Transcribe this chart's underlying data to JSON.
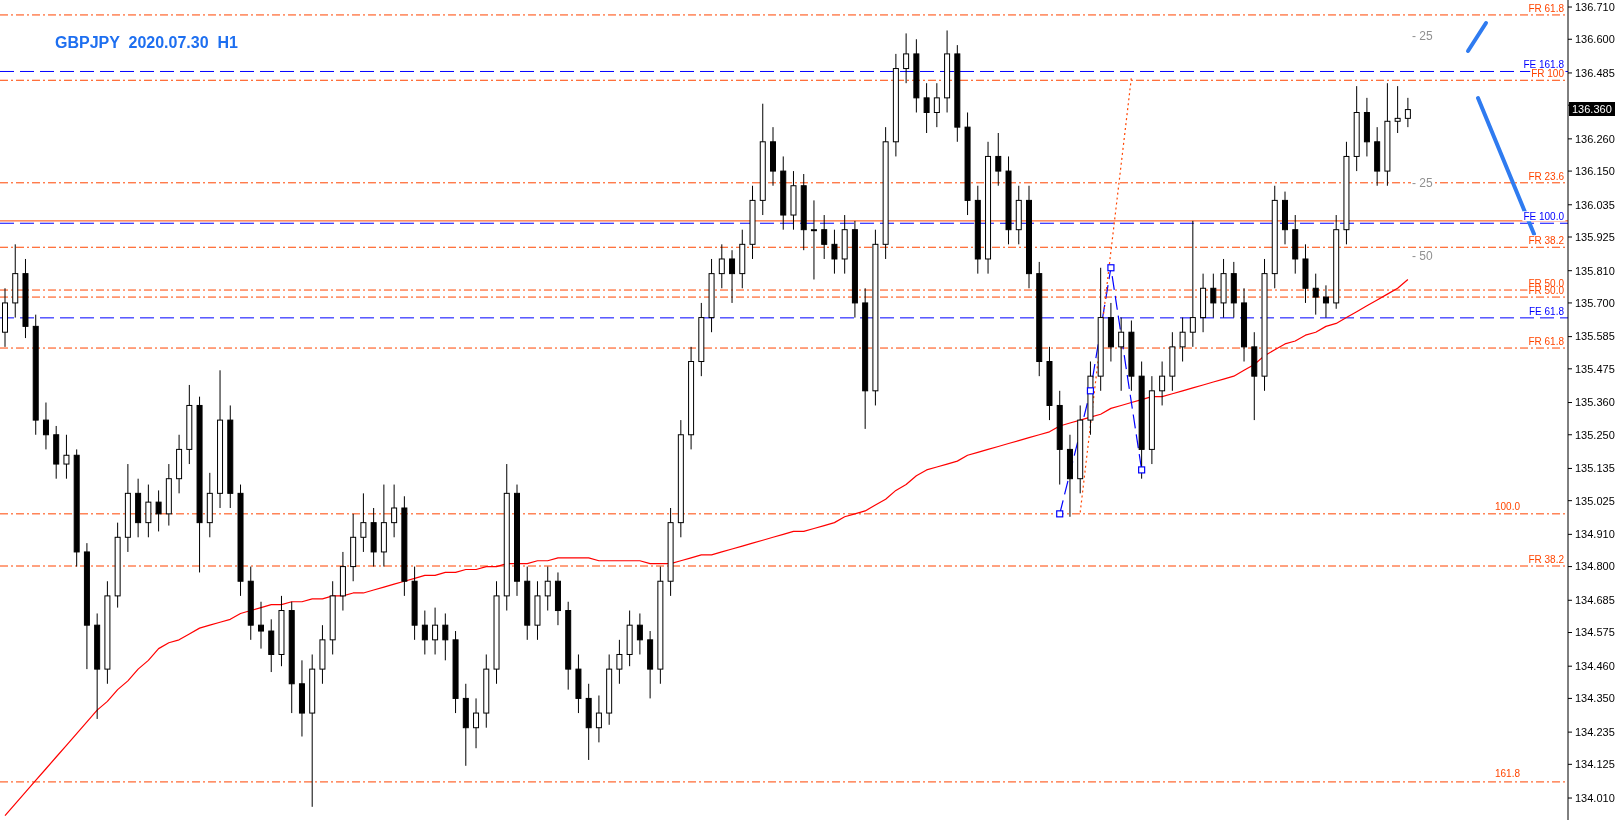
{
  "chart_data": {
    "type": "candlestick",
    "title": "GBPJPY  2020.07.30  H1",
    "categories": [
      null,
      null,
      null,
      null,
      null,
      null,
      null,
      null,
      null,
      null,
      null,
      null,
      null,
      null,
      null,
      null,
      null,
      null,
      null,
      null,
      null,
      null,
      null,
      null,
      null,
      null,
      null,
      null,
      null,
      null,
      null,
      null,
      null,
      null,
      null,
      null,
      null,
      null,
      null,
      null,
      null,
      null,
      null,
      null,
      null,
      null,
      null,
      null,
      null,
      null,
      null,
      null,
      null,
      null,
      null,
      null,
      null,
      null,
      null,
      null,
      null,
      null,
      null,
      null,
      null,
      null,
      null,
      null,
      null,
      null,
      null,
      null,
      null,
      null,
      null,
      null,
      null,
      null,
      null,
      null,
      null,
      null,
      null,
      null,
      null,
      null,
      null,
      null,
      null,
      null,
      null,
      null,
      null,
      null,
      null,
      null,
      null,
      null,
      null,
      null,
      null,
      null,
      null,
      null,
      null,
      null,
      null,
      null,
      null,
      null,
      null,
      null,
      null,
      null,
      null,
      null,
      null,
      null,
      null,
      null,
      null,
      null,
      null,
      null,
      null,
      null,
      null,
      null,
      null,
      null,
      null,
      null,
      null,
      null,
      null,
      null,
      null,
      null,
      null,
      null,
      null,
      null,
      null,
      null,
      null,
      null,
      null,
      null,
      null,
      null,
      null,
      null,
      null
    ],
    "ohlc": [
      [
        135.6,
        135.75,
        135.55,
        135.7
      ],
      [
        135.7,
        135.9,
        135.65,
        135.8
      ],
      [
        135.8,
        135.85,
        135.58,
        135.62
      ],
      [
        135.62,
        135.66,
        135.25,
        135.3
      ],
      [
        135.3,
        135.36,
        135.2,
        135.25
      ],
      [
        135.25,
        135.28,
        135.1,
        135.15
      ],
      [
        135.15,
        135.25,
        135.1,
        135.18
      ],
      [
        135.18,
        135.2,
        134.8,
        134.85
      ],
      [
        134.85,
        134.88,
        134.45,
        134.6
      ],
      [
        134.6,
        134.64,
        134.28,
        134.45
      ],
      [
        134.45,
        134.75,
        134.4,
        134.7
      ],
      [
        134.7,
        134.95,
        134.66,
        134.9
      ],
      [
        134.9,
        135.15,
        134.85,
        135.05
      ],
      [
        135.05,
        135.1,
        134.9,
        134.95
      ],
      [
        134.95,
        135.08,
        134.9,
        135.02
      ],
      [
        135.02,
        135.06,
        134.92,
        134.98
      ],
      [
        134.98,
        135.15,
        134.94,
        135.1
      ],
      [
        135.1,
        135.25,
        135.05,
        135.2
      ],
      [
        135.2,
        135.42,
        135.15,
        135.35
      ],
      [
        135.35,
        135.38,
        134.78,
        134.95
      ],
      [
        134.95,
        135.12,
        134.9,
        135.05
      ],
      [
        135.05,
        135.47,
        135.0,
        135.3
      ],
      [
        135.3,
        135.35,
        135.0,
        135.05
      ],
      [
        135.05,
        135.08,
        134.7,
        134.75
      ],
      [
        134.75,
        134.8,
        134.55,
        134.6
      ],
      [
        134.6,
        134.68,
        134.52,
        134.58
      ],
      [
        134.58,
        134.62,
        134.44,
        134.5
      ],
      [
        134.5,
        134.7,
        134.46,
        134.65
      ],
      [
        134.65,
        134.68,
        134.3,
        134.4
      ],
      [
        134.4,
        134.48,
        134.22,
        134.3
      ],
      [
        134.3,
        134.5,
        133.98,
        134.45
      ],
      [
        134.45,
        134.6,
        134.4,
        134.55
      ],
      [
        134.55,
        134.75,
        134.5,
        134.7
      ],
      [
        134.7,
        134.85,
        134.65,
        134.8
      ],
      [
        134.8,
        134.98,
        134.75,
        134.9
      ],
      [
        134.9,
        135.05,
        134.85,
        134.95
      ],
      [
        134.95,
        135.0,
        134.8,
        134.85
      ],
      [
        134.85,
        135.08,
        134.8,
        134.95
      ],
      [
        134.95,
        135.08,
        134.9,
        135.0
      ],
      [
        135.0,
        135.04,
        134.7,
        134.75
      ],
      [
        134.75,
        134.8,
        134.55,
        134.6
      ],
      [
        134.6,
        134.65,
        134.5,
        134.55
      ],
      [
        134.55,
        134.66,
        134.5,
        134.6
      ],
      [
        134.6,
        134.64,
        134.48,
        134.55
      ],
      [
        134.55,
        134.58,
        134.3,
        134.35
      ],
      [
        134.35,
        134.4,
        134.12,
        134.25
      ],
      [
        134.25,
        134.35,
        134.18,
        134.3
      ],
      [
        134.3,
        134.5,
        134.25,
        134.45
      ],
      [
        134.45,
        134.75,
        134.4,
        134.7
      ],
      [
        134.7,
        135.15,
        134.65,
        135.05
      ],
      [
        135.05,
        135.08,
        134.7,
        134.75
      ],
      [
        134.75,
        134.8,
        134.55,
        134.6
      ],
      [
        134.6,
        134.75,
        134.55,
        134.7
      ],
      [
        134.7,
        134.8,
        134.65,
        134.75
      ],
      [
        134.75,
        134.78,
        134.6,
        134.65
      ],
      [
        134.65,
        134.68,
        134.38,
        134.45
      ],
      [
        134.45,
        134.5,
        134.3,
        134.35
      ],
      [
        134.35,
        134.4,
        134.14,
        134.25
      ],
      [
        134.25,
        134.36,
        134.2,
        134.3
      ],
      [
        134.3,
        134.5,
        134.26,
        134.45
      ],
      [
        134.45,
        134.55,
        134.4,
        134.5
      ],
      [
        134.5,
        134.65,
        134.46,
        134.6
      ],
      [
        134.6,
        134.64,
        134.5,
        134.55
      ],
      [
        134.55,
        134.58,
        134.35,
        134.45
      ],
      [
        134.45,
        134.8,
        134.4,
        134.75
      ],
      [
        134.75,
        135.0,
        134.7,
        134.95
      ],
      [
        134.95,
        135.3,
        134.9,
        135.25
      ],
      [
        135.25,
        135.55,
        135.2,
        135.5
      ],
      [
        135.5,
        135.7,
        135.45,
        135.65
      ],
      [
        135.65,
        135.85,
        135.6,
        135.8
      ],
      [
        135.8,
        135.9,
        135.75,
        135.85
      ],
      [
        135.85,
        135.88,
        135.7,
        135.8
      ],
      [
        135.8,
        135.95,
        135.75,
        135.9
      ],
      [
        135.9,
        136.1,
        135.85,
        136.05
      ],
      [
        136.05,
        136.38,
        136.0,
        136.25
      ],
      [
        136.25,
        136.3,
        136.1,
        136.15
      ],
      [
        136.15,
        136.2,
        135.95,
        136.0
      ],
      [
        136.0,
        136.15,
        135.95,
        136.1
      ],
      [
        136.1,
        136.14,
        135.88,
        135.95
      ],
      [
        135.95,
        136.05,
        135.78,
        135.95
      ],
      [
        135.95,
        136.0,
        135.85,
        135.9
      ],
      [
        135.9,
        135.95,
        135.8,
        135.85
      ],
      [
        135.85,
        136.0,
        135.8,
        135.95
      ],
      [
        135.95,
        135.98,
        135.65,
        135.7
      ],
      [
        135.7,
        135.75,
        135.27,
        135.4
      ],
      [
        135.4,
        135.95,
        135.35,
        135.9
      ],
      [
        135.9,
        136.3,
        135.85,
        136.25
      ],
      [
        136.25,
        136.55,
        136.2,
        136.5
      ],
      [
        136.5,
        136.62,
        136.45,
        136.55
      ],
      [
        136.55,
        136.6,
        136.35,
        136.4
      ],
      [
        136.4,
        136.45,
        136.28,
        136.35
      ],
      [
        136.35,
        136.45,
        136.3,
        136.4
      ],
      [
        136.4,
        136.63,
        136.35,
        136.55
      ],
      [
        136.55,
        136.58,
        136.25,
        136.3
      ],
      [
        136.3,
        136.35,
        136.0,
        136.05
      ],
      [
        136.05,
        136.1,
        135.8,
        135.85
      ],
      [
        135.85,
        136.25,
        135.8,
        136.2
      ],
      [
        136.2,
        136.28,
        136.1,
        136.15
      ],
      [
        136.15,
        136.2,
        135.9,
        135.95
      ],
      [
        135.95,
        136.1,
        135.9,
        136.05
      ],
      [
        136.05,
        136.1,
        135.75,
        135.8
      ],
      [
        135.8,
        135.84,
        135.45,
        135.5
      ],
      [
        135.5,
        135.55,
        135.3,
        135.35
      ],
      [
        135.35,
        135.4,
        135.08,
        135.2
      ],
      [
        135.2,
        135.25,
        134.97,
        135.1
      ],
      [
        135.1,
        135.35,
        135.05,
        135.3
      ],
      [
        135.3,
        135.5,
        135.25,
        135.45
      ],
      [
        135.45,
        135.82,
        135.4,
        135.65
      ],
      [
        135.65,
        135.7,
        135.5,
        135.55
      ],
      [
        135.55,
        135.65,
        135.4,
        135.6
      ],
      [
        135.6,
        135.64,
        135.4,
        135.45
      ],
      [
        135.45,
        135.5,
        135.1,
        135.2
      ],
      [
        135.2,
        135.45,
        135.15,
        135.4
      ],
      [
        135.4,
        135.5,
        135.35,
        135.45
      ],
      [
        135.45,
        135.6,
        135.4,
        135.55
      ],
      [
        135.55,
        135.65,
        135.5,
        135.6
      ],
      [
        135.6,
        135.98,
        135.55,
        135.65
      ],
      [
        135.65,
        135.8,
        135.6,
        135.75
      ],
      [
        135.75,
        135.8,
        135.65,
        135.7
      ],
      [
        135.7,
        135.85,
        135.65,
        135.8
      ],
      [
        135.8,
        135.84,
        135.65,
        135.7
      ],
      [
        135.7,
        135.75,
        135.5,
        135.55
      ],
      [
        135.55,
        135.6,
        135.3,
        135.45
      ],
      [
        135.45,
        135.85,
        135.4,
        135.8
      ],
      [
        135.8,
        136.1,
        135.75,
        136.05
      ],
      [
        136.05,
        136.08,
        135.9,
        135.95
      ],
      [
        135.95,
        136.0,
        135.8,
        135.85
      ],
      [
        135.85,
        135.9,
        135.7,
        135.75
      ],
      [
        135.75,
        135.8,
        135.66,
        135.72
      ],
      [
        135.72,
        135.76,
        135.65,
        135.7
      ],
      [
        135.7,
        136.0,
        135.68,
        135.95
      ],
      [
        135.95,
        136.25,
        135.9,
        136.2
      ],
      [
        136.2,
        136.44,
        136.15,
        136.35
      ],
      [
        136.35,
        136.4,
        136.2,
        136.25
      ],
      [
        136.25,
        136.3,
        136.1,
        136.15
      ],
      [
        136.15,
        136.45,
        136.1,
        136.32
      ],
      [
        136.32,
        136.44,
        136.28,
        136.33
      ],
      [
        136.33,
        136.4,
        136.3,
        136.36
      ],
      null,
      null,
      null,
      null,
      null,
      null,
      null,
      null,
      null,
      null,
      null,
      null,
      null,
      null,
      null
    ],
    "series": [
      {
        "type": "line",
        "color": "#ff0000",
        "values": [
          133.95,
          133.99,
          134.03,
          134.07,
          134.11,
          134.15,
          134.19,
          134.23,
          134.27,
          134.31,
          134.34,
          134.38,
          134.41,
          134.45,
          134.48,
          134.52,
          134.54,
          134.55,
          134.57,
          134.59,
          134.6,
          134.61,
          134.62,
          134.64,
          134.65,
          134.66,
          134.67,
          134.67,
          134.68,
          134.68,
          134.69,
          134.69,
          134.7,
          134.7,
          134.71,
          134.71,
          134.72,
          134.73,
          134.74,
          134.75,
          134.76,
          134.77,
          134.77,
          134.78,
          134.78,
          134.79,
          134.79,
          134.8,
          134.8,
          134.81,
          134.81,
          134.81,
          134.82,
          134.82,
          134.83,
          134.83,
          134.83,
          134.83,
          134.82,
          134.82,
          134.82,
          134.82,
          134.82,
          134.81,
          134.81,
          134.81,
          134.82,
          134.83,
          134.84,
          134.84,
          134.85,
          134.86,
          134.87,
          134.88,
          134.89,
          134.9,
          134.91,
          134.92,
          134.92,
          134.93,
          134.94,
          134.95,
          134.97,
          134.98,
          134.99,
          135.01,
          135.03,
          135.06,
          135.08,
          135.11,
          135.13,
          135.14,
          135.15,
          135.16,
          135.18,
          135.19,
          135.2,
          135.21,
          135.22,
          135.23,
          135.24,
          135.25,
          135.26,
          135.28,
          135.29,
          135.3,
          135.31,
          135.32,
          135.34,
          135.35,
          135.36,
          135.37,
          135.38,
          135.38,
          135.39,
          135.4,
          135.41,
          135.42,
          135.43,
          135.44,
          135.45,
          135.47,
          135.49,
          135.52,
          135.54,
          135.56,
          135.57,
          135.59,
          135.6,
          135.62,
          135.63,
          135.65,
          135.67,
          135.69,
          135.71,
          135.73,
          135.75,
          135.78,
          null,
          null,
          null,
          null,
          null,
          null,
          null,
          null,
          null,
          null,
          null,
          null,
          null,
          null,
          null
        ]
      },
      {
        "type": "line",
        "color": "#0000ff",
        "line_style": "dashed",
        "marker": "square",
        "values": [
          null,
          null,
          null,
          null,
          null,
          null,
          null,
          null,
          null,
          null,
          null,
          null,
          null,
          null,
          null,
          null,
          null,
          null,
          null,
          null,
          null,
          null,
          null,
          null,
          null,
          null,
          null,
          null,
          null,
          null,
          null,
          null,
          null,
          null,
          null,
          null,
          null,
          null,
          null,
          null,
          null,
          null,
          null,
          null,
          null,
          null,
          null,
          null,
          null,
          null,
          null,
          null,
          null,
          null,
          null,
          null,
          null,
          null,
          null,
          null,
          null,
          null,
          null,
          null,
          null,
          null,
          null,
          null,
          null,
          null,
          null,
          null,
          null,
          null,
          null,
          null,
          null,
          null,
          null,
          null,
          null,
          null,
          null,
          null,
          null,
          null,
          null,
          null,
          null,
          null,
          null,
          null,
          null,
          null,
          null,
          null,
          null,
          null,
          null,
          null,
          null,
          null,
          null,
          134.98,
          null,
          null,
          135.4,
          null,
          135.82,
          null,
          null,
          135.13,
          null,
          null,
          null,
          null,
          null,
          null,
          null,
          null,
          null,
          null,
          null,
          null,
          null,
          null,
          null,
          null,
          null,
          null,
          null,
          null,
          null,
          null,
          null,
          null,
          null,
          null,
          null,
          null,
          null,
          null,
          null,
          null,
          null,
          null,
          null,
          null,
          null,
          null,
          null,
          null,
          null
        ]
      },
      {
        "type": "line",
        "color": "#ff4500",
        "line_style": "dotted",
        "values": [
          null,
          null,
          null,
          null,
          null,
          null,
          null,
          null,
          null,
          null,
          null,
          null,
          null,
          null,
          null,
          null,
          null,
          null,
          null,
          null,
          null,
          null,
          null,
          null,
          null,
          null,
          null,
          null,
          null,
          null,
          null,
          null,
          null,
          null,
          null,
          null,
          null,
          null,
          null,
          null,
          null,
          null,
          null,
          null,
          null,
          null,
          null,
          null,
          null,
          null,
          null,
          null,
          null,
          null,
          null,
          null,
          null,
          null,
          null,
          null,
          null,
          null,
          null,
          null,
          null,
          null,
          null,
          null,
          null,
          null,
          null,
          null,
          null,
          null,
          null,
          null,
          null,
          null,
          null,
          null,
          null,
          null,
          null,
          null,
          null,
          null,
          null,
          null,
          null,
          null,
          null,
          null,
          null,
          null,
          null,
          null,
          null,
          null,
          null,
          null,
          null,
          null,
          null,
          null,
          null,
          134.985,
          null,
          null,
          null,
          null,
          136.47,
          null,
          null,
          null,
          null,
          null,
          null,
          null,
          null,
          null,
          null,
          null,
          null,
          null,
          null,
          null,
          null,
          null,
          null,
          null,
          null,
          null,
          null,
          null,
          null,
          null,
          null,
          null,
          null,
          null,
          null,
          null,
          null,
          null,
          null,
          null,
          null,
          null,
          null,
          null,
          null,
          null,
          null
        ]
      }
    ],
    "ylim": [
      133.935,
      136.734
    ],
    "yticks": [
      {
        "value": 136.71,
        "label": "136.710"
      },
      {
        "value": 136.6,
        "label": "136.600"
      },
      {
        "value": 136.485,
        "label": "136.485"
      },
      {
        "value": 136.375,
        "label": null
      },
      {
        "value": 136.26,
        "label": "136.260"
      },
      {
        "value": 136.15,
        "label": "136.150"
      },
      {
        "value": 136.035,
        "label": "136.035"
      },
      {
        "value": 135.925,
        "label": "135.925"
      },
      {
        "value": 135.81,
        "label": "135.810"
      },
      {
        "value": 135.7,
        "label": "135.700"
      },
      {
        "value": 135.585,
        "label": "135.585"
      },
      {
        "value": 135.475,
        "label": "135.475"
      },
      {
        "value": 135.36,
        "label": "135.360"
      },
      {
        "value": 135.25,
        "label": "135.250"
      },
      {
        "value": 135.135,
        "label": "135.135"
      },
      {
        "value": 135.025,
        "label": "135.025"
      },
      {
        "value": 134.91,
        "label": "134.910"
      },
      {
        "value": 134.8,
        "label": "134.800"
      },
      {
        "value": 134.685,
        "label": "134.685"
      },
      {
        "value": 134.575,
        "label": "134.575"
      },
      {
        "value": 134.46,
        "label": "134.460"
      },
      {
        "value": 134.35,
        "label": "134.350"
      },
      {
        "value": 134.235,
        "label": "134.235"
      },
      {
        "value": 134.125,
        "label": "134.125"
      },
      {
        "value": 134.01,
        "label": "134.010"
      }
    ],
    "ref_lines": [
      {
        "axis": "y",
        "value": 136.683,
        "label": "FR 61.8",
        "color": "#ff4500",
        "line_style": "dashdot"
      },
      {
        "axis": "y",
        "value": 136.49,
        "label": "FE 161.8",
        "color": "#0000ff",
        "line_style": "dashed"
      },
      {
        "axis": "y",
        "value": 136.46,
        "label": "FR 100",
        "color": "#ff4500",
        "line_style": "dashdot"
      },
      {
        "axis": "y",
        "value": 136.11,
        "label": "FR 23.6",
        "color": "#ff4500",
        "line_style": "dashdot"
      },
      {
        "axis": "y",
        "value": 135.98,
        "label": null,
        "color": "#ff4500",
        "line_style": "solid"
      },
      {
        "axis": "y",
        "value": 135.972,
        "label": "FE 100.0",
        "color": "#0000ff",
        "line_style": "dashed"
      },
      {
        "axis": "y",
        "value": 135.89,
        "label": "FR 38.2",
        "color": "#ff4500",
        "line_style": "dashdot"
      },
      {
        "axis": "y",
        "value": 135.744,
        "label": "FR 50.0",
        "color": "#ff4500",
        "line_style": "dashdot"
      },
      {
        "axis": "y",
        "value": 135.72,
        "label": "FR 50.0",
        "color": "#ff4500",
        "line_style": "dashdot"
      },
      {
        "axis": "y",
        "value": 135.649,
        "label": "FE 61.8",
        "color": "#0000ff",
        "line_style": "dashed"
      },
      {
        "axis": "y",
        "value": 135.546,
        "label": "FR 61.8",
        "color": "#ff4500",
        "line_style": "dashdot"
      },
      {
        "axis": "y",
        "value": 134.98,
        "label": null,
        "color": "#ff4500",
        "line_style": "dashdot"
      },
      {
        "axis": "y",
        "value": 134.802,
        "label": "FR 38.2",
        "color": "#ff4500",
        "line_style": "dashdot"
      },
      {
        "axis": "y",
        "value": 134.065,
        "label": null,
        "color": "#ff4500",
        "line_style": "dashdot"
      }
    ],
    "annotations": [
      "- 25",
      "- 25",
      "- 50",
      "136.360",
      "100.0",
      "161.8"
    ]
  }
}
